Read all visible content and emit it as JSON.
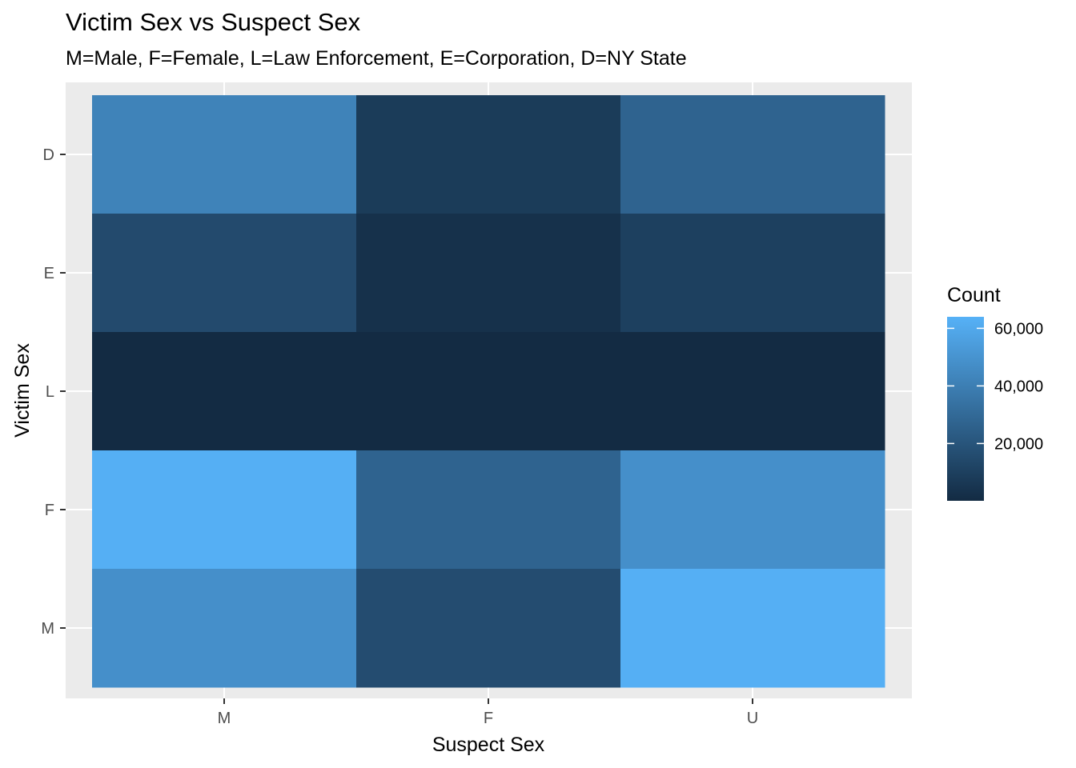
{
  "chart_data": {
    "type": "heatmap",
    "title": "Victim Sex vs Suspect Sex",
    "subtitle": "M=Male, F=Female, L=Law Enforcement, E=Corporation, D=NY State",
    "xlabel": "Suspect Sex",
    "ylabel": "Victim Sex",
    "x_categories": [
      "M",
      "F",
      "U"
    ],
    "y_categories": [
      "M",
      "F",
      "L",
      "E",
      "D"
    ],
    "values": [
      {
        "victim": "D",
        "values": [
          42000,
          8000,
          27000
        ]
      },
      {
        "victim": "E",
        "values": [
          15000,
          3000,
          10000
        ]
      },
      {
        "victim": "L",
        "values": [
          100,
          100,
          100
        ]
      },
      {
        "victim": "F",
        "values": [
          63000,
          27000,
          48000
        ]
      },
      {
        "victim": "M",
        "values": [
          48000,
          16000,
          63000
        ]
      }
    ],
    "legend": {
      "title": "Count",
      "ticks": [
        "20,000",
        "40,000",
        "60,000"
      ],
      "tick_values": [
        20000,
        40000,
        60000
      ],
      "range": [
        100,
        64000
      ],
      "position": "right"
    },
    "colors": {
      "low": "#132b43",
      "high": "#56b1f7"
    },
    "grid": true
  }
}
